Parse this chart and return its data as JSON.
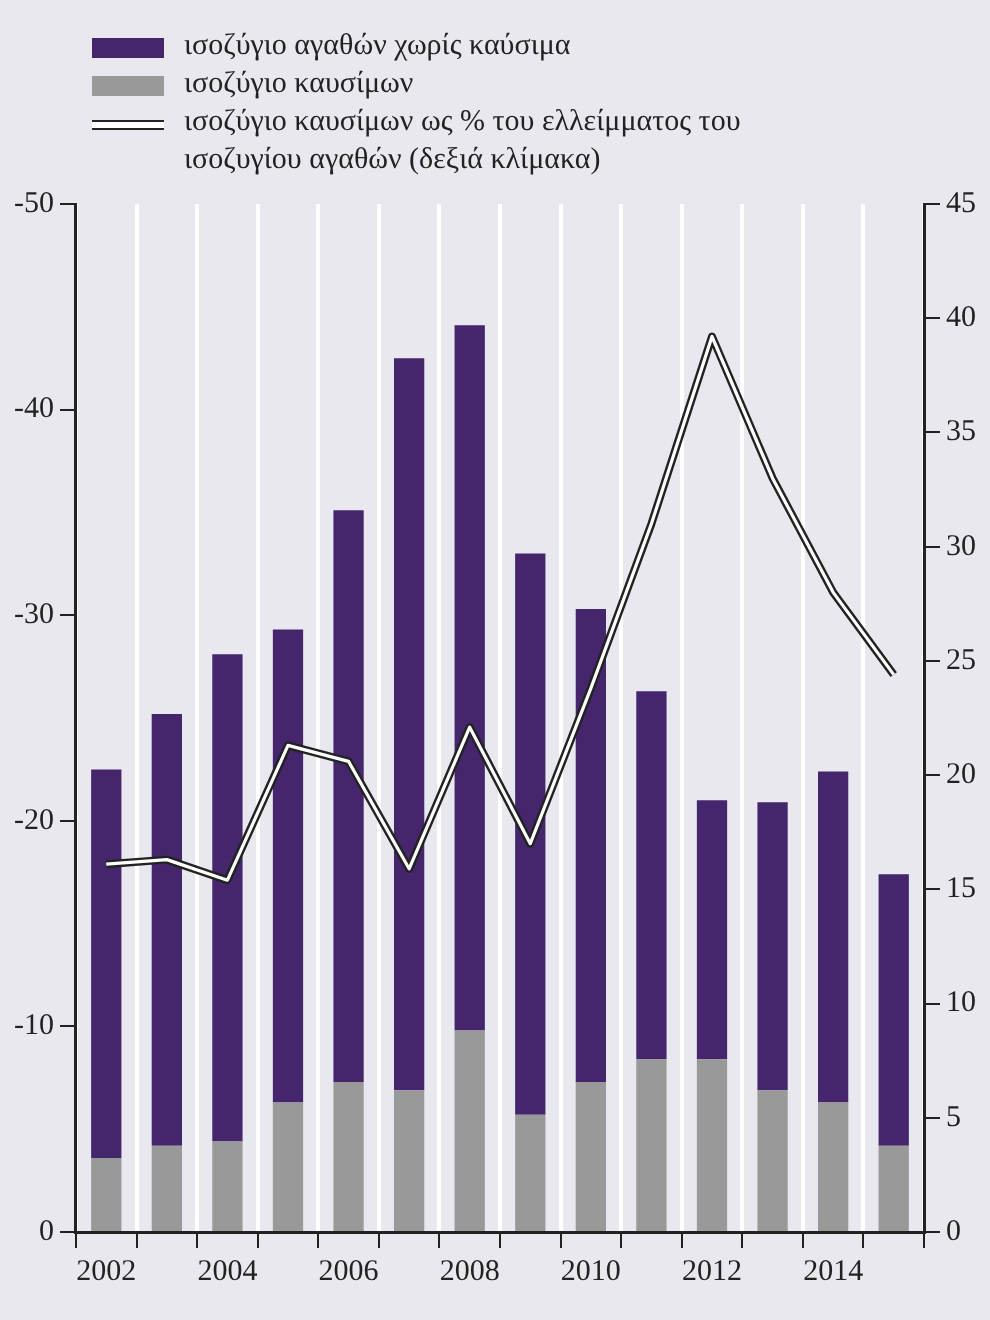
{
  "chart_data": {
    "type": "bar",
    "stacked": true,
    "categories": [
      "2002",
      null,
      "2004",
      null,
      "2006",
      null,
      "2008",
      null,
      "2010",
      null,
      "2012",
      null,
      "2014",
      null
    ],
    "series": [
      {
        "name": "ισοζύγιο καυσίμων",
        "color": "#999999",
        "values": [
          -3.6,
          -4.2,
          -4.4,
          -6.3,
          -7.3,
          -6.9,
          -9.8,
          -5.7,
          -7.3,
          -8.4,
          -8.4,
          -6.9,
          -6.3,
          -4.2
        ]
      },
      {
        "name": "ισοζύγιο αγαθών χωρίς καύσιμα",
        "color": "#45266d",
        "values": [
          -18.9,
          -21.0,
          -23.7,
          -23.0,
          -27.8,
          -35.6,
          -34.3,
          -27.3,
          -23.0,
          -17.9,
          -12.6,
          -14.0,
          -16.1,
          -13.2
        ]
      },
      {
        "name": "ισοζύγιο καυσίμων ως % του ελλείμματος του ισοζυγίου αγαθών (δεξιά κλίμακα)",
        "type": "line",
        "axis": "y2",
        "color": "#ffffff",
        "values": [
          16.1,
          16.3,
          15.4,
          21.3,
          20.6,
          15.9,
          22.1,
          17.0,
          23.8,
          31.0,
          39.2,
          33.0,
          28.0,
          24.4
        ]
      }
    ],
    "ylim": [
      0,
      -50
    ],
    "yticks": [
      0,
      -10,
      -20,
      -30,
      -40,
      -50
    ],
    "y2lim": [
      0,
      45
    ],
    "y2ticks": [
      0,
      5,
      10,
      15,
      20,
      25,
      30,
      35,
      40,
      45
    ],
    "grid": "x",
    "legend": "top left",
    "marker": "none",
    "line_style": "solid"
  }
}
